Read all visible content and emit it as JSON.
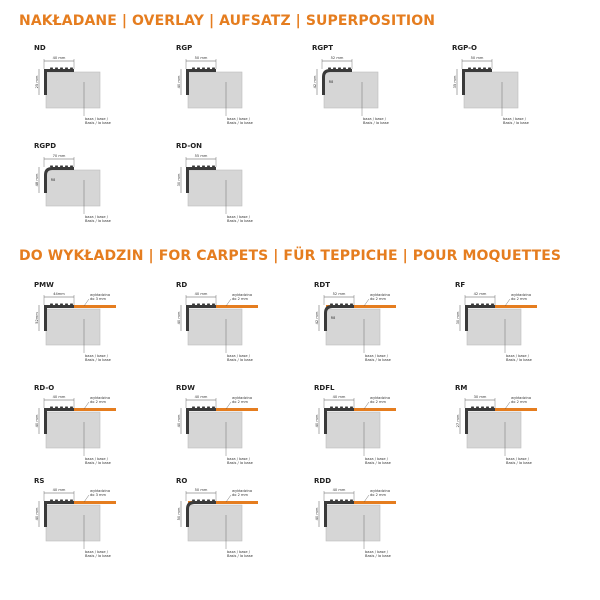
{
  "colors": {
    "accent": "#e57d1f",
    "profile": "#3a3a3a",
    "base_fill": "#d6d6d6",
    "carpet": "#e57d1f",
    "dimension_line": "#555555"
  },
  "sections": [
    {
      "heading": "NAKŁADANE | OVERLAY | AUFSATZ | SUPERPOSITION",
      "profiles": [
        {
          "code": "ND",
          "width_label": "40 mm",
          "height_label": "25 mm",
          "base_label": [
            "baza / base /",
            "Basis / la base"
          ],
          "rounded": false,
          "mid_label": ""
        },
        {
          "code": "RGP",
          "width_label": "50 mm",
          "height_label": "40 mm",
          "base_label": [
            "baza / base /",
            "Basis / la base"
          ],
          "rounded": false,
          "mid_label": ""
        },
        {
          "code": "RGPT",
          "width_label": "52 mm",
          "height_label": "42 mm",
          "base_label": [
            "baza / base /",
            "Basis / la base"
          ],
          "rounded": true,
          "mid_label": "R8"
        },
        {
          "code": "RGP-O",
          "width_label": "50 mm",
          "height_label": "35 mm",
          "base_label": [
            "baza / base /",
            "Basis / la base"
          ],
          "rounded": false,
          "mid_label": ""
        },
        {
          "code": "RGPD",
          "width_label": "70 mm",
          "height_label": "48 mm",
          "base_label": [
            "baza / base /",
            "Basis / la base"
          ],
          "rounded": true,
          "mid_label": "R8"
        },
        {
          "code": "RD-ON",
          "width_label": "55 mm",
          "height_label": "30 mm",
          "base_label": [
            "baza / base /",
            "Basis / la base"
          ],
          "rounded": false,
          "mid_label": ""
        }
      ]
    },
    {
      "heading": "DO WYKŁADZIN | FOR CARPETS | FÜR TEPPICHE | POUR MOQUETTES",
      "profiles": [
        {
          "code": "PMW",
          "width_label": "44mm",
          "height_label": "52mm",
          "carpet_label": [
            "wykładzina",
            "do 3 mm"
          ],
          "base_label": [
            "baza / base /",
            "Basis / la base"
          ],
          "rounded": false,
          "mid_label": ""
        },
        {
          "code": "RD",
          "width_label": "40 mm",
          "height_label": "40 mm",
          "carpet_label": [
            "wykładzina",
            "do 2 mm"
          ],
          "base_label": [
            "baza / base /",
            "Basis / la base"
          ],
          "rounded": false,
          "mid_label": ""
        },
        {
          "code": "RDT",
          "width_label": "52 mm",
          "height_label": "42 mm",
          "carpet_label": [
            "wykładzina",
            "do 2 mm"
          ],
          "base_label": [
            "baza / base /",
            "Basis / la base"
          ],
          "rounded": true,
          "mid_label": "R8"
        },
        {
          "code": "RF",
          "width_label": "42 mm",
          "height_label": "30 mm",
          "carpet_label": [
            "wykładzina",
            "do 2 mm"
          ],
          "base_label": [
            "baza / base /",
            "Basis / la base"
          ],
          "rounded": false,
          "mid_label": ""
        },
        {
          "code": "RD-O",
          "width_label": "40 mm",
          "height_label": "40 mm",
          "carpet_label": [
            "wykładzina",
            "do 2 mm"
          ],
          "base_label": [
            "baza / base /",
            "Basis / la base"
          ],
          "rounded": false,
          "mid_label": ""
        },
        {
          "code": "RDW",
          "width_label": "40 mm",
          "height_label": "40 mm",
          "carpet_label": [
            "wykładzina",
            "do 2 mm"
          ],
          "base_label": [
            "baza / base /",
            "Basis / la base"
          ],
          "rounded": false,
          "mid_label": ""
        },
        {
          "code": "RDFL",
          "width_label": "40 mm",
          "height_label": "40 mm",
          "carpet_label": [
            "wykładzina",
            "do 2 mm"
          ],
          "base_label": [
            "baza / base /",
            "Basis / la base"
          ],
          "rounded": false,
          "mid_label": ""
        },
        {
          "code": "RM",
          "width_label": "30 mm",
          "height_label": "27 mm",
          "carpet_label": [
            "wykładzina",
            "do 2 mm"
          ],
          "base_label": [
            "baza / base /",
            "Basis / la base"
          ],
          "rounded": false,
          "mid_label": ""
        },
        {
          "code": "RS",
          "width_label": "40 mm",
          "height_label": "40 mm",
          "carpet_label": [
            "wykładzina",
            "do 3 mm"
          ],
          "base_label": [
            "baza / base /",
            "Basis / la base"
          ],
          "rounded": false,
          "mid_label": ""
        },
        {
          "code": "RO",
          "width_label": "50 mm",
          "height_label": "50 mm",
          "carpet_label": [
            "wykładzina",
            "do 2 mm"
          ],
          "base_label": [
            "baza / base /",
            "Basis / la base"
          ],
          "rounded": true,
          "mid_label": ""
        },
        {
          "code": "RDD",
          "width_label": "40 mm",
          "height_label": "40 mm",
          "carpet_label": [
            "wykładzina",
            "do 2 mm"
          ],
          "base_label": [
            "baza / base /",
            "Basis / la base"
          ],
          "rounded": false,
          "mid_label": ""
        }
      ]
    }
  ]
}
